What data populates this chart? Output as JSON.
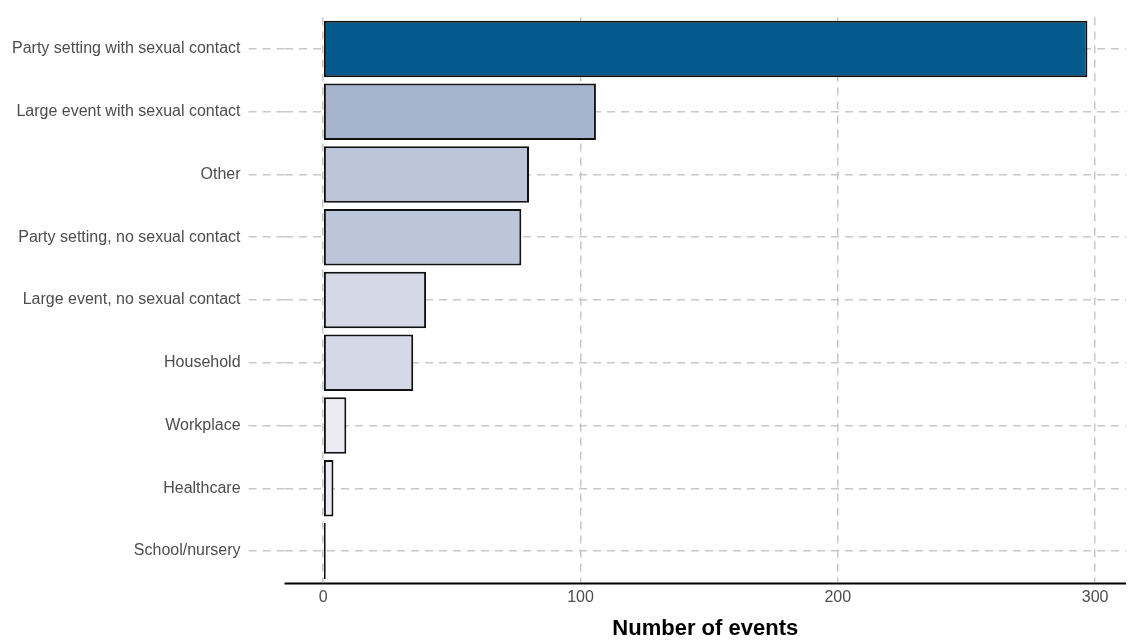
{
  "chart_data": {
    "type": "bar",
    "orientation": "horizontal",
    "xlabel": "Number of events",
    "categories": [
      "Party setting with sexual contact",
      "Large event with sexual contact",
      "Other",
      "Party setting, no sexual contact",
      "Large event, no sexual contact",
      "Household",
      "Workplace",
      "Healthcare",
      "School/nursery"
    ],
    "values": [
      297,
      106,
      80,
      77,
      40,
      35,
      9,
      4,
      1
    ],
    "colors": [
      "#045a8d",
      "#a6b4ce",
      "#bcc5d9",
      "#bcc5d9",
      "#d5d9e7",
      "#d5d9e7",
      "#ebebf3",
      "#ebebf3",
      "#111111"
    ],
    "xlim": [
      -15,
      312
    ],
    "xticks": [
      0,
      100,
      200,
      300
    ],
    "grid": true
  }
}
